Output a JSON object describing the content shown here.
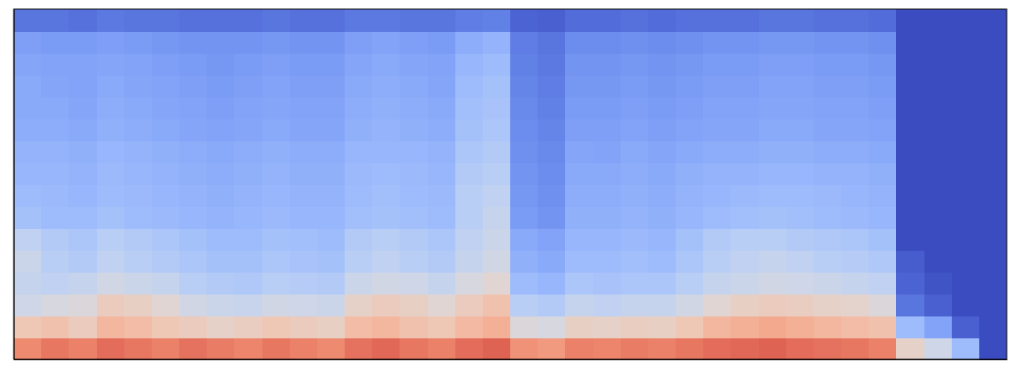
{
  "chart_data": {
    "type": "heatmap",
    "tick_labels": false,
    "xlim": [
      0,
      36
    ],
    "ylim": [
      0,
      16
    ],
    "zlim": [
      0,
      1
    ],
    "z": [
      [
        0.78,
        0.82,
        0.8,
        0.84,
        0.82,
        0.8,
        0.83,
        0.81,
        0.79,
        0.82,
        0.8,
        0.78,
        0.83,
        0.85,
        0.82,
        0.8,
        0.84,
        0.86,
        0.76,
        0.74,
        0.8,
        0.79,
        0.81,
        0.8,
        0.82,
        0.84,
        0.85,
        0.86,
        0.84,
        0.83,
        0.82,
        0.8,
        0.55,
        0.45,
        0.3,
        0.0
      ],
      [
        0.6,
        0.62,
        0.58,
        0.66,
        0.64,
        0.6,
        0.58,
        0.55,
        0.57,
        0.6,
        0.58,
        0.56,
        0.64,
        0.66,
        0.62,
        0.6,
        0.65,
        0.68,
        0.5,
        0.48,
        0.56,
        0.55,
        0.57,
        0.56,
        0.6,
        0.66,
        0.68,
        0.7,
        0.68,
        0.66,
        0.64,
        0.62,
        0.3,
        0.22,
        0.05,
        0.0
      ],
      [
        0.45,
        0.48,
        0.5,
        0.58,
        0.56,
        0.52,
        0.46,
        0.44,
        0.43,
        0.46,
        0.45,
        0.44,
        0.55,
        0.58,
        0.56,
        0.52,
        0.58,
        0.62,
        0.38,
        0.36,
        0.42,
        0.4,
        0.42,
        0.42,
        0.46,
        0.52,
        0.56,
        0.58,
        0.57,
        0.55,
        0.54,
        0.5,
        0.1,
        0.05,
        0.0,
        0.0
      ],
      [
        0.42,
        0.4,
        0.42,
        0.46,
        0.44,
        0.42,
        0.38,
        0.36,
        0.35,
        0.38,
        0.37,
        0.36,
        0.44,
        0.46,
        0.45,
        0.42,
        0.48,
        0.52,
        0.3,
        0.28,
        0.34,
        0.33,
        0.34,
        0.34,
        0.38,
        0.42,
        0.44,
        0.46,
        0.45,
        0.44,
        0.42,
        0.4,
        0.06,
        0.02,
        0.0,
        0.0
      ],
      [
        0.44,
        0.38,
        0.36,
        0.4,
        0.38,
        0.36,
        0.34,
        0.32,
        0.32,
        0.34,
        0.33,
        0.32,
        0.38,
        0.4,
        0.38,
        0.36,
        0.42,
        0.46,
        0.26,
        0.24,
        0.3,
        0.3,
        0.31,
        0.3,
        0.34,
        0.38,
        0.4,
        0.42,
        0.4,
        0.38,
        0.37,
        0.35,
        0.04,
        0.0,
        0.0,
        0.0
      ],
      [
        0.4,
        0.36,
        0.34,
        0.38,
        0.36,
        0.34,
        0.32,
        0.3,
        0.3,
        0.32,
        0.31,
        0.3,
        0.36,
        0.38,
        0.36,
        0.34,
        0.4,
        0.44,
        0.24,
        0.22,
        0.28,
        0.28,
        0.29,
        0.28,
        0.32,
        0.36,
        0.38,
        0.38,
        0.36,
        0.35,
        0.34,
        0.32,
        0.0,
        0.0,
        0.0,
        0.0
      ],
      [
        0.32,
        0.3,
        0.3,
        0.32,
        0.3,
        0.29,
        0.28,
        0.27,
        0.28,
        0.29,
        0.28,
        0.28,
        0.31,
        0.32,
        0.31,
        0.3,
        0.38,
        0.42,
        0.2,
        0.18,
        0.26,
        0.26,
        0.27,
        0.26,
        0.28,
        0.3,
        0.31,
        0.32,
        0.31,
        0.3,
        0.29,
        0.28,
        0.0,
        0.0,
        0.0,
        0.0
      ],
      [
        0.3,
        0.29,
        0.28,
        0.3,
        0.29,
        0.28,
        0.27,
        0.26,
        0.27,
        0.28,
        0.27,
        0.27,
        0.3,
        0.31,
        0.3,
        0.29,
        0.38,
        0.4,
        0.19,
        0.17,
        0.25,
        0.25,
        0.26,
        0.25,
        0.27,
        0.28,
        0.29,
        0.3,
        0.3,
        0.29,
        0.28,
        0.27,
        0.0,
        0.0,
        0.0,
        0.0
      ],
      [
        0.28,
        0.28,
        0.27,
        0.29,
        0.28,
        0.27,
        0.26,
        0.25,
        0.26,
        0.27,
        0.26,
        0.26,
        0.29,
        0.3,
        0.29,
        0.28,
        0.36,
        0.38,
        0.18,
        0.16,
        0.24,
        0.24,
        0.25,
        0.24,
        0.26,
        0.27,
        0.27,
        0.28,
        0.28,
        0.27,
        0.27,
        0.26,
        0.0,
        0.0,
        0.0,
        0.0
      ],
      [
        0.27,
        0.27,
        0.26,
        0.28,
        0.27,
        0.26,
        0.25,
        0.24,
        0.25,
        0.26,
        0.25,
        0.25,
        0.28,
        0.28,
        0.28,
        0.27,
        0.34,
        0.36,
        0.17,
        0.15,
        0.23,
        0.22,
        0.24,
        0.23,
        0.24,
        0.25,
        0.25,
        0.26,
        0.26,
        0.25,
        0.25,
        0.24,
        0.0,
        0.0,
        0.0,
        0.0
      ],
      [
        0.25,
        0.25,
        0.24,
        0.26,
        0.25,
        0.24,
        0.23,
        0.22,
        0.23,
        0.24,
        0.23,
        0.23,
        0.26,
        0.27,
        0.26,
        0.25,
        0.32,
        0.34,
        0.16,
        0.14,
        0.21,
        0.21,
        0.22,
        0.21,
        0.22,
        0.23,
        0.23,
        0.24,
        0.24,
        0.23,
        0.23,
        0.22,
        0.0,
        0.0,
        0.0,
        0.0
      ],
      [
        0.24,
        0.24,
        0.23,
        0.25,
        0.24,
        0.23,
        0.22,
        0.21,
        0.22,
        0.23,
        0.22,
        0.22,
        0.25,
        0.26,
        0.25,
        0.24,
        0.31,
        0.33,
        0.15,
        0.13,
        0.2,
        0.2,
        0.21,
        0.2,
        0.21,
        0.22,
        0.22,
        0.23,
        0.23,
        0.22,
        0.22,
        0.21,
        0.0,
        0.0,
        0.0,
        0.0
      ],
      [
        0.24,
        0.23,
        0.22,
        0.24,
        0.23,
        0.22,
        0.21,
        0.2,
        0.21,
        0.22,
        0.21,
        0.21,
        0.24,
        0.25,
        0.24,
        0.23,
        0.3,
        0.32,
        0.14,
        0.12,
        0.19,
        0.19,
        0.2,
        0.19,
        0.2,
        0.21,
        0.21,
        0.22,
        0.22,
        0.21,
        0.21,
        0.2,
        0.0,
        0.0,
        0.0,
        0.0
      ],
      [
        0.23,
        0.22,
        0.22,
        0.23,
        0.22,
        0.21,
        0.2,
        0.19,
        0.2,
        0.21,
        0.2,
        0.2,
        0.23,
        0.24,
        0.23,
        0.22,
        0.28,
        0.3,
        0.13,
        0.11,
        0.18,
        0.18,
        0.19,
        0.18,
        0.19,
        0.2,
        0.2,
        0.21,
        0.21,
        0.2,
        0.2,
        0.19,
        0.0,
        0.0,
        0.0,
        0.0
      ],
      [
        0.21,
        0.2,
        0.2,
        0.21,
        0.2,
        0.19,
        0.18,
        0.18,
        0.18,
        0.19,
        0.18,
        0.18,
        0.21,
        0.22,
        0.21,
        0.2,
        0.25,
        0.27,
        0.12,
        0.1,
        0.16,
        0.16,
        0.17,
        0.16,
        0.17,
        0.18,
        0.18,
        0.19,
        0.19,
        0.18,
        0.18,
        0.17,
        0.0,
        0.0,
        0.0,
        0.0
      ],
      [
        0.1,
        0.1,
        0.09,
        0.11,
        0.1,
        0.1,
        0.09,
        0.09,
        0.09,
        0.1,
        0.09,
        0.09,
        0.11,
        0.11,
        0.1,
        0.1,
        0.12,
        0.13,
        0.06,
        0.05,
        0.08,
        0.08,
        0.09,
        0.08,
        0.09,
        0.09,
        0.09,
        0.1,
        0.1,
        0.09,
        0.09,
        0.08,
        0.0,
        0.0,
        0.0,
        0.0
      ]
    ]
  }
}
